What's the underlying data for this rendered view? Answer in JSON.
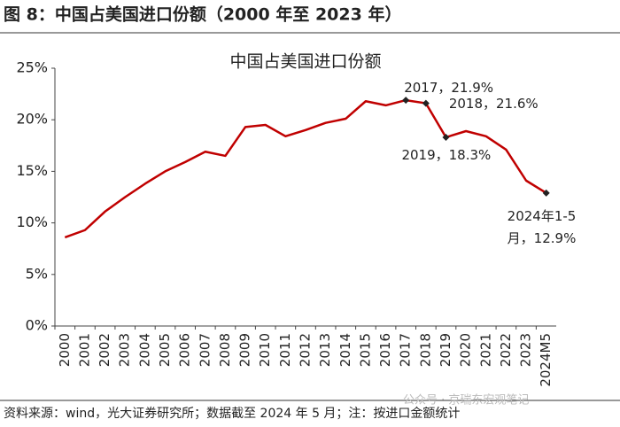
{
  "figure_title": "图 8：中国占美国进口份额（2000 年至 2023 年）",
  "source": "资料来源：wind，光大证券研究所；数据截至 2024 年 5 月；注：按进口金额统计",
  "watermark": "公众号 · 京瑞东宏观笔记",
  "chart_data": {
    "type": "line",
    "title": "中国占美国进口份额",
    "categories": [
      "2000",
      "2001",
      "2002",
      "2003",
      "2004",
      "2005",
      "2006",
      "2007",
      "2008",
      "2009",
      "2010",
      "2011",
      "2012",
      "2013",
      "2014",
      "2015",
      "2016",
      "2017",
      "2018",
      "2019",
      "2020",
      "2021",
      "2022",
      "2023",
      "2024M5"
    ],
    "values": [
      8.6,
      9.3,
      11.1,
      12.5,
      13.8,
      15.0,
      15.9,
      16.9,
      16.5,
      19.3,
      19.5,
      18.4,
      19.0,
      19.7,
      20.1,
      21.8,
      21.4,
      21.9,
      21.6,
      18.3,
      18.9,
      18.4,
      17.1,
      14.1,
      12.9
    ],
    "value_labels": [
      null,
      null,
      null,
      null,
      null,
      null,
      null,
      null,
      null,
      null,
      null,
      null,
      null,
      null,
      null,
      null,
      null,
      "2017，21.9%",
      "2018，21.6%",
      "2019，18.3%",
      null,
      null,
      null,
      null,
      "2024年1-5月，12.9%"
    ],
    "color": "#c00000",
    "ylim": [
      0,
      25
    ],
    "yticks": [
      {
        "value": 0,
        "label": "0%"
      },
      {
        "value": 5,
        "label": "5%"
      },
      {
        "value": 10,
        "label": "10%"
      },
      {
        "value": 15,
        "label": "15%"
      },
      {
        "value": 20,
        "label": "20%"
      },
      {
        "value": 25,
        "label": "25%"
      }
    ]
  }
}
